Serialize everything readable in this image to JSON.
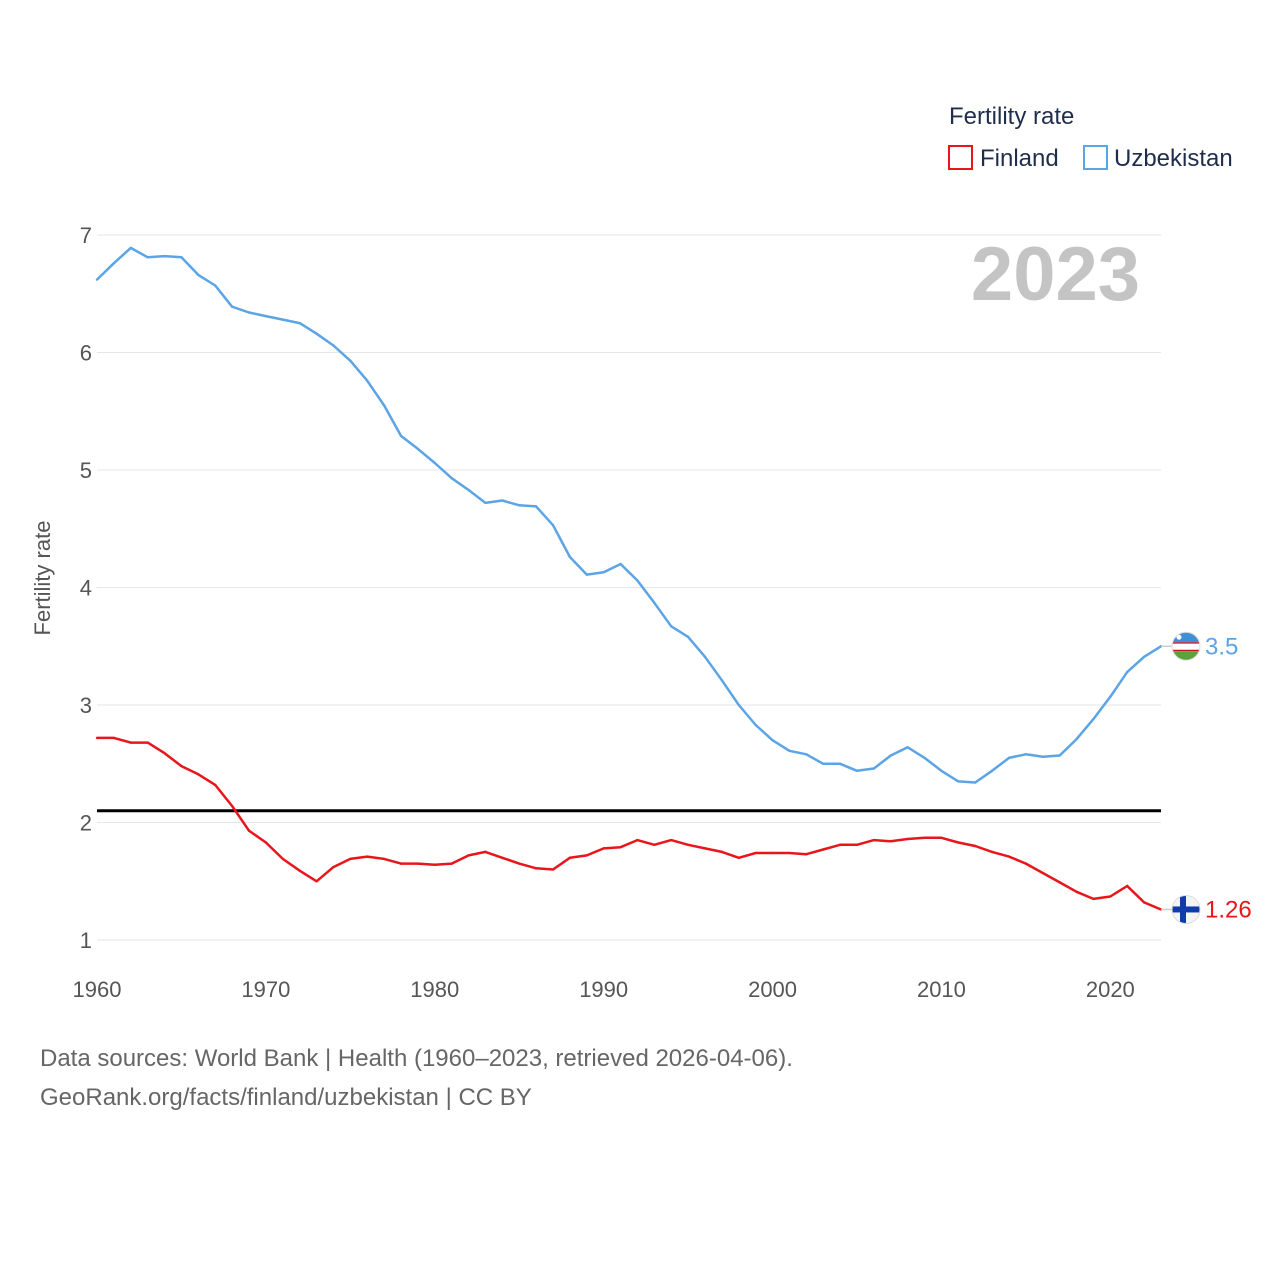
{
  "chart_data": {
    "type": "line",
    "legend_title": "Fertility rate",
    "year_label": "2023",
    "ylabel": "Fertility rate",
    "xlabel": "",
    "xlim": [
      1960,
      2023
    ],
    "ylim": [
      1,
      7
    ],
    "xticks": [
      "1960",
      "1970",
      "1980",
      "1990",
      "2000",
      "2010",
      "2020"
    ],
    "yticks": [
      "1",
      "2",
      "3",
      "4",
      "5",
      "6",
      "7"
    ],
    "grid": true,
    "legend_position": "top-right",
    "reference_line": {
      "y": 2.1
    },
    "x": [
      1960,
      1961,
      1962,
      1963,
      1964,
      1965,
      1966,
      1967,
      1968,
      1969,
      1970,
      1971,
      1972,
      1973,
      1974,
      1975,
      1976,
      1977,
      1978,
      1979,
      1980,
      1981,
      1982,
      1983,
      1984,
      1985,
      1986,
      1987,
      1988,
      1989,
      1990,
      1991,
      1992,
      1993,
      1994,
      1995,
      1996,
      1997,
      1998,
      1999,
      2000,
      2001,
      2002,
      2003,
      2004,
      2005,
      2006,
      2007,
      2008,
      2009,
      2010,
      2011,
      2012,
      2013,
      2014,
      2015,
      2016,
      2017,
      2018,
      2019,
      2020,
      2021,
      2022,
      2023
    ],
    "series": [
      {
        "name": "Finland",
        "color": "#e8161b",
        "end_label": "1.26",
        "flag": "finland-flag",
        "values": [
          2.72,
          2.72,
          2.68,
          2.68,
          2.59,
          2.48,
          2.41,
          2.32,
          2.14,
          1.93,
          1.83,
          1.69,
          1.59,
          1.5,
          1.62,
          1.69,
          1.71,
          1.69,
          1.65,
          1.65,
          1.64,
          1.65,
          1.72,
          1.75,
          1.7,
          1.65,
          1.61,
          1.6,
          1.7,
          1.72,
          1.78,
          1.79,
          1.85,
          1.81,
          1.85,
          1.81,
          1.78,
          1.75,
          1.7,
          1.74,
          1.74,
          1.74,
          1.73,
          1.77,
          1.81,
          1.81,
          1.85,
          1.84,
          1.86,
          1.87,
          1.87,
          1.83,
          1.8,
          1.75,
          1.71,
          1.65,
          1.57,
          1.49,
          1.41,
          1.35,
          1.37,
          1.46,
          1.32,
          1.26
        ]
      },
      {
        "name": "Uzbekistan",
        "color": "#5ba4e6",
        "end_label": "3.5",
        "flag": "uzbekistan-flag",
        "values": [
          6.62,
          6.76,
          6.89,
          6.81,
          6.82,
          6.81,
          6.66,
          6.57,
          6.39,
          6.34,
          6.31,
          6.28,
          6.25,
          6.16,
          6.06,
          5.93,
          5.76,
          5.55,
          5.29,
          5.18,
          5.06,
          4.93,
          4.83,
          4.72,
          4.74,
          4.7,
          4.69,
          4.53,
          4.26,
          4.11,
          4.13,
          4.2,
          4.06,
          3.87,
          3.67,
          3.58,
          3.41,
          3.21,
          3.0,
          2.83,
          2.7,
          2.61,
          2.58,
          2.5,
          2.5,
          2.44,
          2.46,
          2.57,
          2.64,
          2.55,
          2.44,
          2.35,
          2.34,
          2.44,
          2.55,
          2.58,
          2.56,
          2.57,
          2.71,
          2.88,
          3.07,
          3.28,
          3.41,
          3.5
        ]
      }
    ]
  },
  "footer": {
    "line1": "Data sources: World Bank | Health (1960–2023, retrieved 2026-04-06).",
    "line2": "GeoRank.org/facts/finland/uzbekistan | CC BY"
  }
}
